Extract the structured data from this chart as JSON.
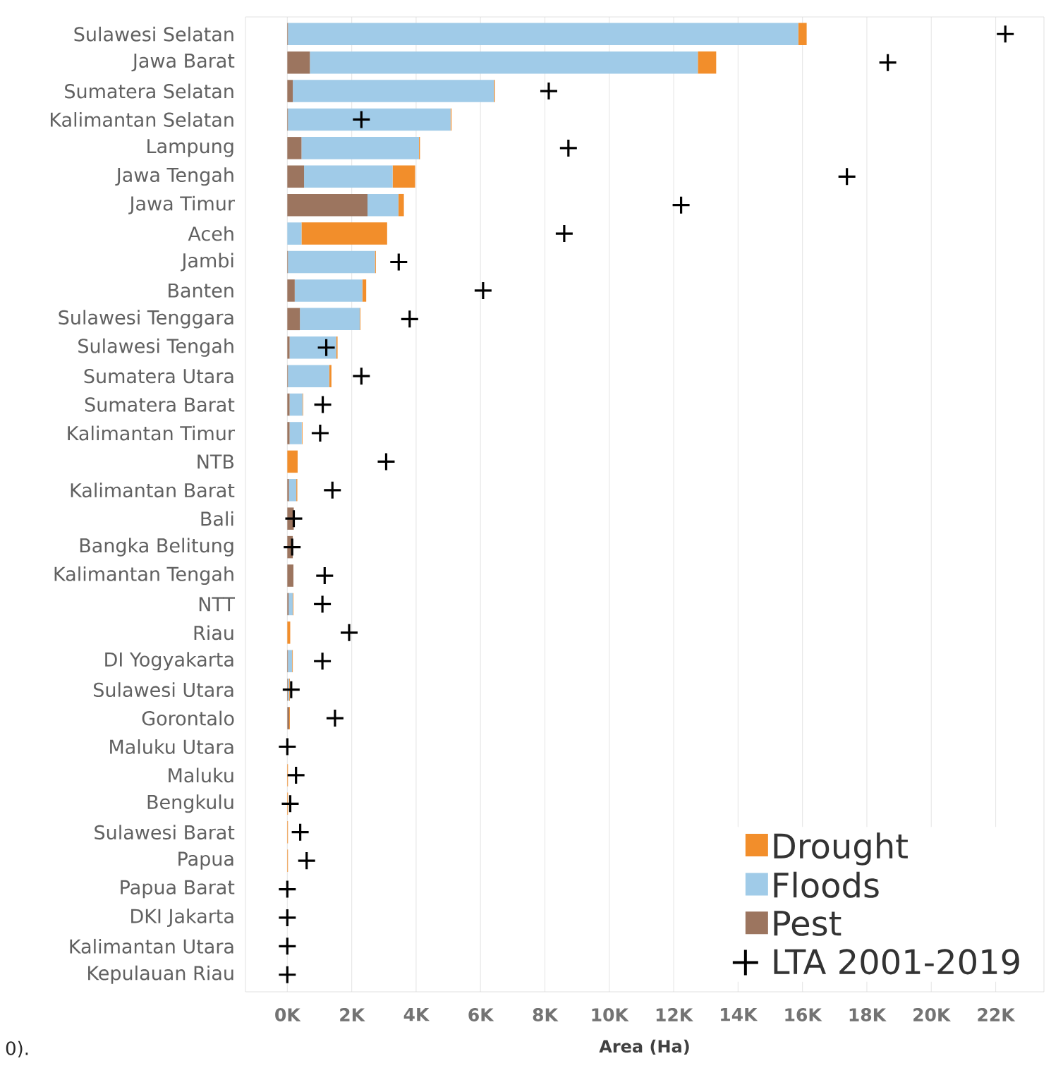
{
  "chart_data": {
    "type": "bar",
    "orientation": "horizontal",
    "stacked": true,
    "categories": [
      "Sulawesi Selatan",
      "Jawa Barat",
      "Sumatera Selatan",
      "Kalimantan Selatan",
      "Lampung",
      "Jawa Tengah",
      "Jawa Timur",
      "Aceh",
      "Jambi",
      "Banten",
      "Sulawesi Tenggara",
      "Sulawesi Tengah",
      "Sumatera Utara",
      "Sumatera Barat",
      "Kalimantan Timur",
      "NTB",
      "Kalimantan Barat",
      "Bali",
      "Bangka Belitung",
      "Kalimantan Tengah",
      "NTT",
      "Riau",
      "DI Yogyakarta",
      "Sulawesi Utara",
      "Gorontalo",
      "Maluku Utara",
      "Maluku",
      "Bengkulu",
      "Sulawesi Barat",
      "Papua",
      "Papua Barat",
      "DKI Jakarta",
      "Kalimantan Utara",
      "Kepulauan Riau"
    ],
    "series": [
      {
        "name": "Pest",
        "color": "#9c755f",
        "values": [
          20,
          700,
          170,
          20,
          440,
          520,
          2490,
          0,
          20,
          230,
          390,
          70,
          20,
          70,
          70,
          0,
          50,
          200,
          170,
          190,
          40,
          0,
          20,
          20,
          60,
          0,
          0,
          0,
          0,
          0,
          0,
          0,
          0,
          0
        ]
      },
      {
        "name": "Floods",
        "color": "#a0cbe8",
        "values": [
          15850,
          12050,
          6250,
          5050,
          3650,
          2750,
          960,
          440,
          2700,
          2100,
          1860,
          1450,
          1280,
          400,
          380,
          0,
          230,
          0,
          0,
          0,
          130,
          0,
          130,
          40,
          0,
          0,
          0,
          0,
          0,
          0,
          0,
          0,
          0,
          0
        ]
      },
      {
        "name": "Drought",
        "color": "#f28e2b",
        "values": [
          260,
          570,
          30,
          30,
          30,
          700,
          170,
          2660,
          30,
          120,
          20,
          40,
          70,
          20,
          20,
          320,
          30,
          null,
          0,
          0,
          20,
          90,
          20,
          20,
          20,
          0,
          20,
          20,
          20,
          20,
          0,
          0,
          0,
          0
        ]
      },
      {
        "name": "LTA 2001-2019",
        "type": "scatter",
        "marker": "cross",
        "color": "#000000",
        "values": [
          22300,
          18650,
          8120,
          2300,
          8730,
          17380,
          12230,
          8600,
          3460,
          6080,
          3800,
          1210,
          2300,
          1100,
          1020,
          3070,
          1400,
          200,
          150,
          1160,
          1090,
          1920,
          1090,
          120,
          1480,
          0,
          270,
          90,
          400,
          600,
          0,
          0,
          0,
          0
        ]
      }
    ],
    "xlabel": "Area (Ha)",
    "xlim": [
      -1300,
      23500
    ],
    "xticks": [
      {
        "value": 0,
        "label": "0K"
      },
      {
        "value": 2000,
        "label": "2K"
      },
      {
        "value": 4000,
        "label": "4K"
      },
      {
        "value": 6000,
        "label": "6K"
      },
      {
        "value": 8000,
        "label": "8K"
      },
      {
        "value": 10000,
        "label": "10K"
      },
      {
        "value": 12000,
        "label": "12K"
      },
      {
        "value": 14000,
        "label": "14K"
      },
      {
        "value": 16000,
        "label": "16K"
      },
      {
        "value": 18000,
        "label": "18K"
      },
      {
        "value": 20000,
        "label": "20K"
      },
      {
        "value": 22000,
        "label": "22K"
      }
    ],
    "grid": "x",
    "legend": "bottom right",
    "annotations": [
      "0)."
    ]
  }
}
